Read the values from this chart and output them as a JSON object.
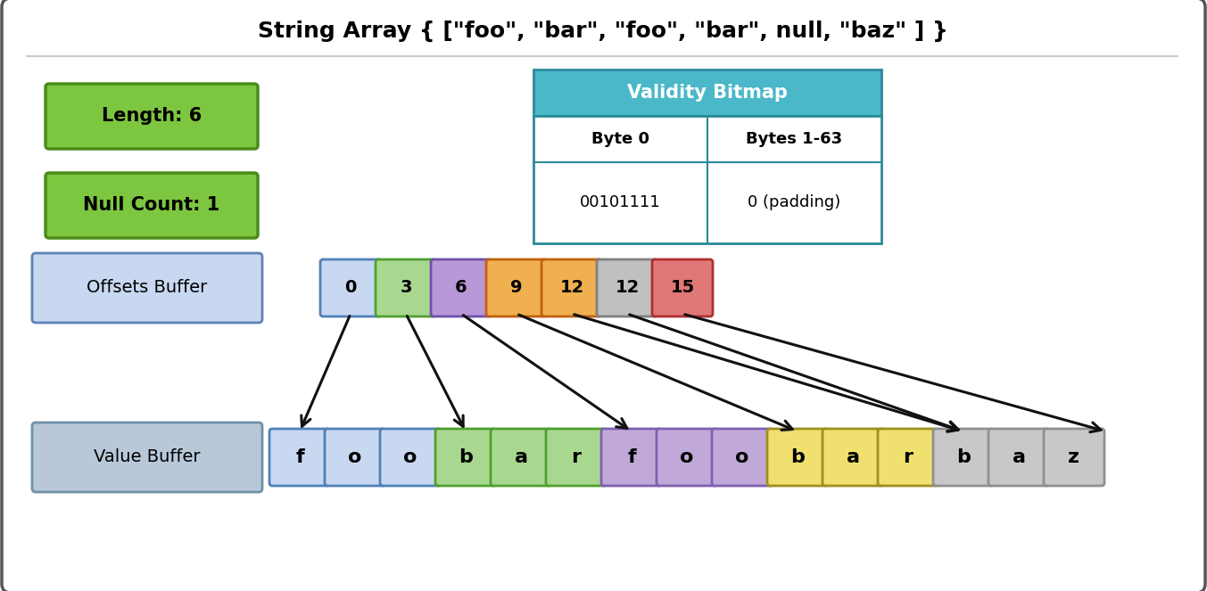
{
  "title": "String Array { [\"foo\", \"bar\", \"foo\", \"bar\", null, \"baz\" ] }",
  "bg_color": "#ffffff",
  "outer_border_color": "#555555",
  "length_label": "Length: 6",
  "null_count_label": "Null Count: 1",
  "green_box_fill": "#7dc63f",
  "green_box_edge": "#4a8c1a",
  "validity_title": "Validity Bitmap",
  "validity_header_fill": "#4ab8c8",
  "validity_header_edge": "#2a8a9a",
  "validity_col1_header": "Byte 0",
  "validity_col2_header": "Bytes 1-63",
  "validity_col1_value": "00101111",
  "validity_col2_value": "0 (padding)",
  "offsets_label": "Offsets Buffer",
  "offsets_box_fill": "#c8d8f0",
  "offsets_box_edge": "#6080b8",
  "value_label": "Value Buffer",
  "value_box_fill": "#b8c8d8",
  "value_box_edge": "#7090a8",
  "offset_values": [
    "0",
    "3",
    "6",
    "9",
    "12",
    "12",
    "15"
  ],
  "offset_colors": [
    "#c8d8f0",
    "#a8d890",
    "#b898d8",
    "#f0b050",
    "#f0b050",
    "#c0c0c0",
    "#e07878"
  ],
  "offset_edge_colors": [
    "#5080b8",
    "#50a030",
    "#7050a8",
    "#c06010",
    "#c06010",
    "#808080",
    "#b03030"
  ],
  "value_chars": [
    "f",
    "o",
    "o",
    "b",
    "a",
    "r",
    "f",
    "o",
    "o",
    "b",
    "a",
    "r",
    "b",
    "a",
    "z"
  ],
  "value_char_colors": [
    "#c8d8f0",
    "#c8d8f0",
    "#c8d8f0",
    "#a8d890",
    "#a8d890",
    "#a8d890",
    "#c0a8d8",
    "#c0a8d8",
    "#c0a8d8",
    "#f0e070",
    "#f0e070",
    "#f0e070",
    "#c8c8c8",
    "#c8c8c8",
    "#c8c8c8"
  ],
  "value_char_edge_colors": [
    "#5080b8",
    "#5080b8",
    "#5080b8",
    "#50a030",
    "#50a030",
    "#50a030",
    "#8060b0",
    "#8060b0",
    "#8060b0",
    "#a09020",
    "#a09020",
    "#a09020",
    "#909090",
    "#909090",
    "#909090"
  ],
  "arrow_color": "#111111",
  "arrow_targets": [
    0,
    3,
    6,
    9,
    12,
    12,
    15
  ]
}
